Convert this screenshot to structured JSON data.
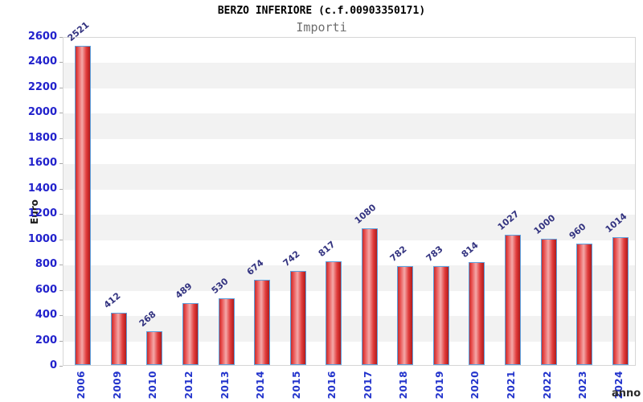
{
  "chart_data": {
    "type": "bar",
    "title": "BERZO INFERIORE (c.f.00903350171)",
    "subtitle": "Importi",
    "xlabel": "anno",
    "ylabel": "Euro",
    "categories": [
      "2006",
      "2009",
      "2010",
      "2012",
      "2013",
      "2014",
      "2015",
      "2016",
      "2017",
      "2018",
      "2019",
      "2020",
      "2021",
      "2022",
      "2023",
      "2024"
    ],
    "values": [
      2521,
      412,
      268,
      489,
      530,
      674,
      742,
      817,
      1080,
      782,
      783,
      814,
      1027,
      1000,
      960,
      1014
    ],
    "ylim": [
      0,
      2600
    ],
    "y_ticks": [
      0,
      200,
      400,
      600,
      800,
      1000,
      1200,
      1400,
      1600,
      1800,
      2000,
      2200,
      2400,
      2600
    ],
    "grid": "alternating horizontal bands every 200 units",
    "legend": "none",
    "colors": {
      "y_tick_label": "#2222cc",
      "x_tick_label": "#2233cc",
      "value_label": "#333380",
      "bar_border": "#5da0dd",
      "bar_gradient_stops": [
        "#c03030",
        "#e84b4b",
        "#f4a8a8",
        "#e03a3a",
        "#b01c1c"
      ],
      "band_gray": "#f2f2f2",
      "frame": "#d6d6d6",
      "title": "#000000",
      "subtitle": "#6e6e6e",
      "axis_title": "#1a1a1a"
    }
  }
}
